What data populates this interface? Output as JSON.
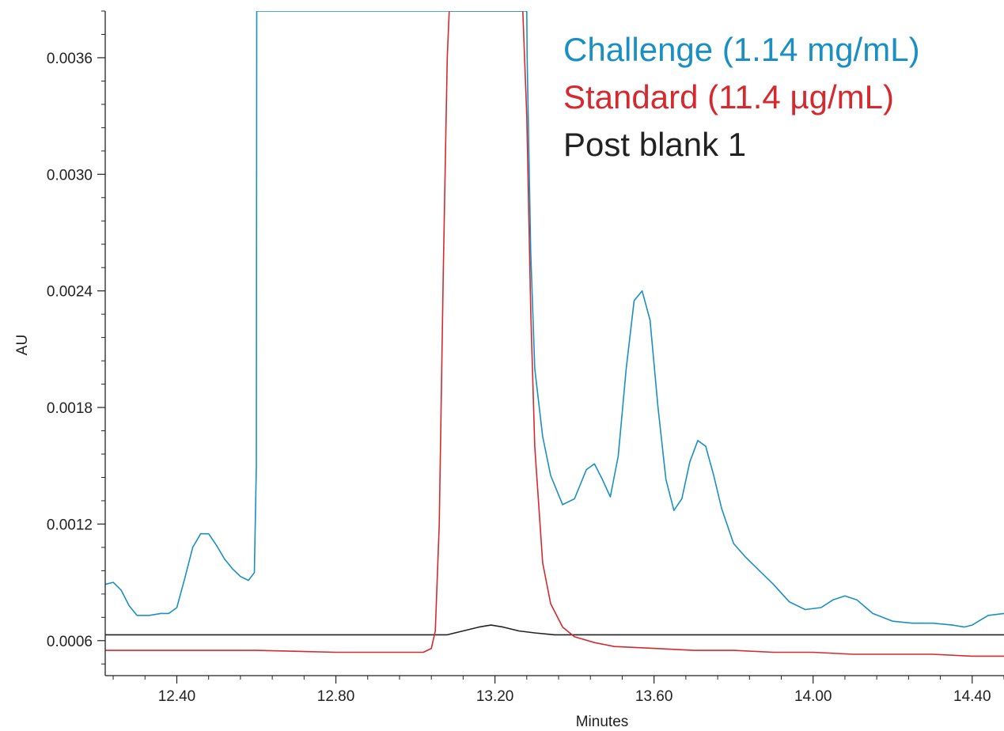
{
  "chart_data": {
    "type": "line",
    "xlabel": "Minutes",
    "ylabel": "AU",
    "xlim": [
      12.22,
      14.48
    ],
    "ylim": [
      0.00042,
      0.00384
    ],
    "x_ticks": [
      12.4,
      12.8,
      13.2,
      13.6,
      14.0,
      14.4
    ],
    "x_tick_labels": [
      "12.40",
      "12.80",
      "13.20",
      "13.60",
      "14.00",
      "14.40"
    ],
    "y_ticks": [
      0.0006,
      0.0012,
      0.0018,
      0.0024,
      0.003,
      0.0036
    ],
    "y_tick_labels": [
      "0.0006",
      "0.0012",
      "0.0018",
      "0.0024",
      "0.0030",
      "0.0036"
    ],
    "grid": false,
    "legend_position": "top-right",
    "series": [
      {
        "name": "Challenge (1.14 mg/mL)",
        "color": "#1a8fc4",
        "x": [
          12.22,
          12.24,
          12.26,
          12.28,
          12.3,
          12.33,
          12.36,
          12.38,
          12.4,
          12.42,
          12.44,
          12.46,
          12.48,
          12.5,
          12.52,
          12.54,
          12.56,
          12.58,
          12.595,
          12.6,
          12.601,
          13.28,
          13.281,
          13.29,
          13.3,
          13.32,
          13.34,
          13.37,
          13.4,
          13.43,
          13.45,
          13.47,
          13.49,
          13.51,
          13.53,
          13.55,
          13.57,
          13.59,
          13.61,
          13.63,
          13.65,
          13.67,
          13.69,
          13.71,
          13.73,
          13.75,
          13.77,
          13.8,
          13.83,
          13.86,
          13.9,
          13.94,
          13.98,
          14.02,
          14.05,
          14.08,
          14.11,
          14.15,
          14.2,
          14.25,
          14.3,
          14.35,
          14.38,
          14.4,
          14.44,
          14.48
        ],
        "y": [
          0.00089,
          0.0009,
          0.00086,
          0.00078,
          0.00073,
          0.00073,
          0.00074,
          0.00074,
          0.00077,
          0.00092,
          0.00108,
          0.00115,
          0.00115,
          0.00109,
          0.00102,
          0.00097,
          0.00093,
          0.00091,
          0.00095,
          0.0015,
          0.00384,
          0.00384,
          0.0036,
          0.0026,
          0.002,
          0.00165,
          0.00145,
          0.0013,
          0.00133,
          0.00148,
          0.00151,
          0.00143,
          0.00134,
          0.00155,
          0.002,
          0.00235,
          0.0024,
          0.00225,
          0.0018,
          0.00143,
          0.00127,
          0.00133,
          0.00152,
          0.00163,
          0.0016,
          0.00145,
          0.00128,
          0.0011,
          0.00103,
          0.00097,
          0.00089,
          0.0008,
          0.00076,
          0.00077,
          0.00081,
          0.00083,
          0.00081,
          0.00074,
          0.0007,
          0.00069,
          0.00069,
          0.00068,
          0.00067,
          0.00068,
          0.00073,
          0.00074
        ]
      },
      {
        "name": "Standard (11.4 µg/mL)",
        "color": "#d42a2f",
        "x": [
          12.22,
          12.4,
          12.6,
          12.8,
          12.95,
          13.02,
          13.04,
          13.05,
          13.06,
          13.07,
          13.08,
          13.085,
          13.27,
          13.28,
          13.29,
          13.3,
          13.32,
          13.34,
          13.37,
          13.4,
          13.45,
          13.5,
          13.6,
          13.7,
          13.8,
          13.9,
          14.0,
          14.1,
          14.2,
          14.3,
          14.4,
          14.48
        ],
        "y": [
          0.00055,
          0.00055,
          0.00055,
          0.00054,
          0.00054,
          0.00054,
          0.00056,
          0.00065,
          0.0012,
          0.0025,
          0.0036,
          0.00384,
          0.00384,
          0.0033,
          0.0023,
          0.0016,
          0.001,
          0.00079,
          0.00067,
          0.00062,
          0.00059,
          0.00057,
          0.00056,
          0.00055,
          0.00055,
          0.00054,
          0.00054,
          0.00053,
          0.00053,
          0.00053,
          0.00052,
          0.00052
        ]
      },
      {
        "name": "Post blank 1",
        "color": "#222222",
        "x": [
          12.22,
          12.4,
          12.6,
          12.8,
          13.0,
          13.08,
          13.12,
          13.16,
          13.19,
          13.22,
          13.26,
          13.3,
          13.35,
          13.4,
          13.6,
          13.8,
          14.0,
          14.2,
          14.4,
          14.48
        ],
        "y": [
          0.00063,
          0.00063,
          0.00063,
          0.00063,
          0.00063,
          0.00063,
          0.00065,
          0.00067,
          0.00068,
          0.00067,
          0.00065,
          0.00064,
          0.00063,
          0.00063,
          0.00063,
          0.00063,
          0.00063,
          0.00063,
          0.00063,
          0.00063
        ]
      }
    ]
  }
}
